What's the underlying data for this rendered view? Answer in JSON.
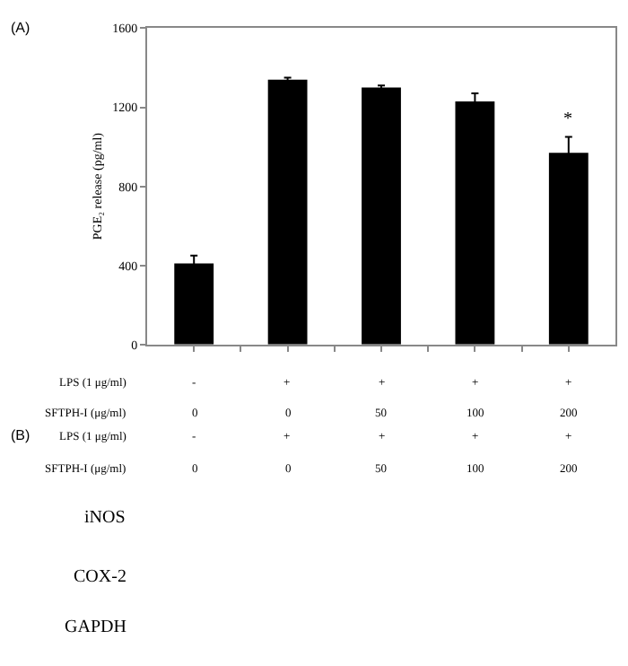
{
  "chart_data": {
    "type": "bar",
    "ylabel": "PGE₂ release (pg/ml)",
    "categories": [
      null,
      null,
      null,
      null,
      null
    ],
    "series": [
      {
        "color": "#000000",
        "values": [
          410,
          1340,
          1300,
          1230,
          970
        ],
        "errors": [
          40,
          10,
          10,
          40,
          80
        ]
      }
    ],
    "ylim": [
      0,
      1600
    ],
    "yticks": [
      0,
      400,
      800,
      1200,
      1600
    ],
    "tick_labels": "y",
    "annotations": [
      "(A)",
      "*",
      "LPS (1 μg/ml)",
      "-",
      "+",
      "+",
      "+",
      "+",
      "SFTPH-I (μg/ml)",
      "0",
      "0",
      "50",
      "100",
      "200",
      "LPS (1 μg/ml)",
      "-",
      "+",
      "+",
      "+",
      "+",
      "SFTPH-I (μg/ml)",
      "0",
      "0",
      "50",
      "100",
      "200",
      "(B)",
      "iNOS",
      "COX-2",
      "GAPDH"
    ]
  }
}
